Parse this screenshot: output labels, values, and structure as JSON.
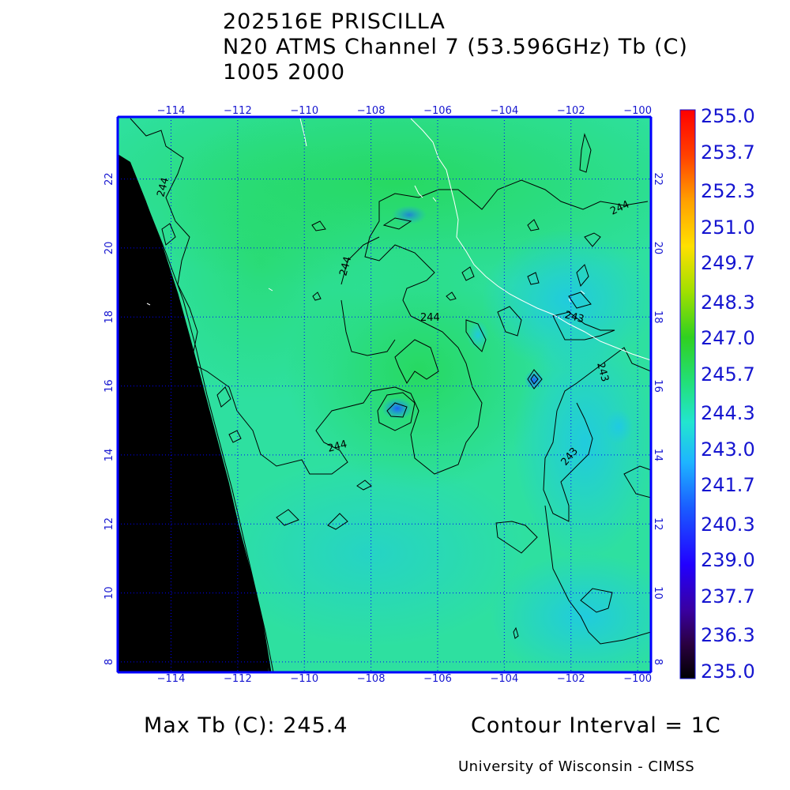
{
  "title": {
    "line1": "202516E PRISCILLA",
    "line2": "N20 ATMS Channel 7 (53.596GHz) Tb (C)",
    "line3": "1005 2000"
  },
  "footer": {
    "max_tb": "Max Tb (C): 245.4",
    "contour_interval": "Contour Interval = 1C",
    "credit": "University of Wisconsin - CIMSS"
  },
  "map": {
    "lon_range": [
      -115.6,
      -99.6
    ],
    "lat_range": [
      7.7,
      23.8
    ],
    "lon_ticks": [
      -114,
      -112,
      -110,
      -108,
      -106,
      -104,
      -102,
      -100
    ],
    "lon_tick_labels": [
      "−114",
      "−112",
      "−110",
      "−108",
      "−106",
      "−104",
      "−102",
      "−100"
    ],
    "lat_ticks": [
      8,
      10,
      12,
      14,
      16,
      18,
      20,
      22
    ],
    "lat_tick_labels": [
      "8",
      "10",
      "12",
      "14",
      "16",
      "18",
      "20",
      "22"
    ],
    "grid_color": "#0000ff",
    "coast_color": "#ffffff",
    "field_color": "#22e07a",
    "no_data_color": "#000000",
    "contour_labels": [
      "244",
      "244",
      "244",
      "244",
      "244",
      "244",
      "243",
      "243",
      "243",
      "244"
    ]
  },
  "colorbar": {
    "min": 235.0,
    "max": 255.0,
    "labels": [
      "255.0",
      "253.7",
      "252.3",
      "251.0",
      "249.7",
      "248.3",
      "247.0",
      "245.7",
      "244.3",
      "243.0",
      "241.7",
      "240.3",
      "239.0",
      "237.7",
      "236.3",
      "235.0"
    ],
    "colors": [
      "#000000",
      "#3a0070",
      "#3300cc",
      "#1a2eff",
      "#1e90ff",
      "#22e5e5",
      "#22e07a",
      "#30d020",
      "#c8e000",
      "#ffe000",
      "#ff9a00",
      "#ff3000",
      "#ff0000"
    ]
  }
}
